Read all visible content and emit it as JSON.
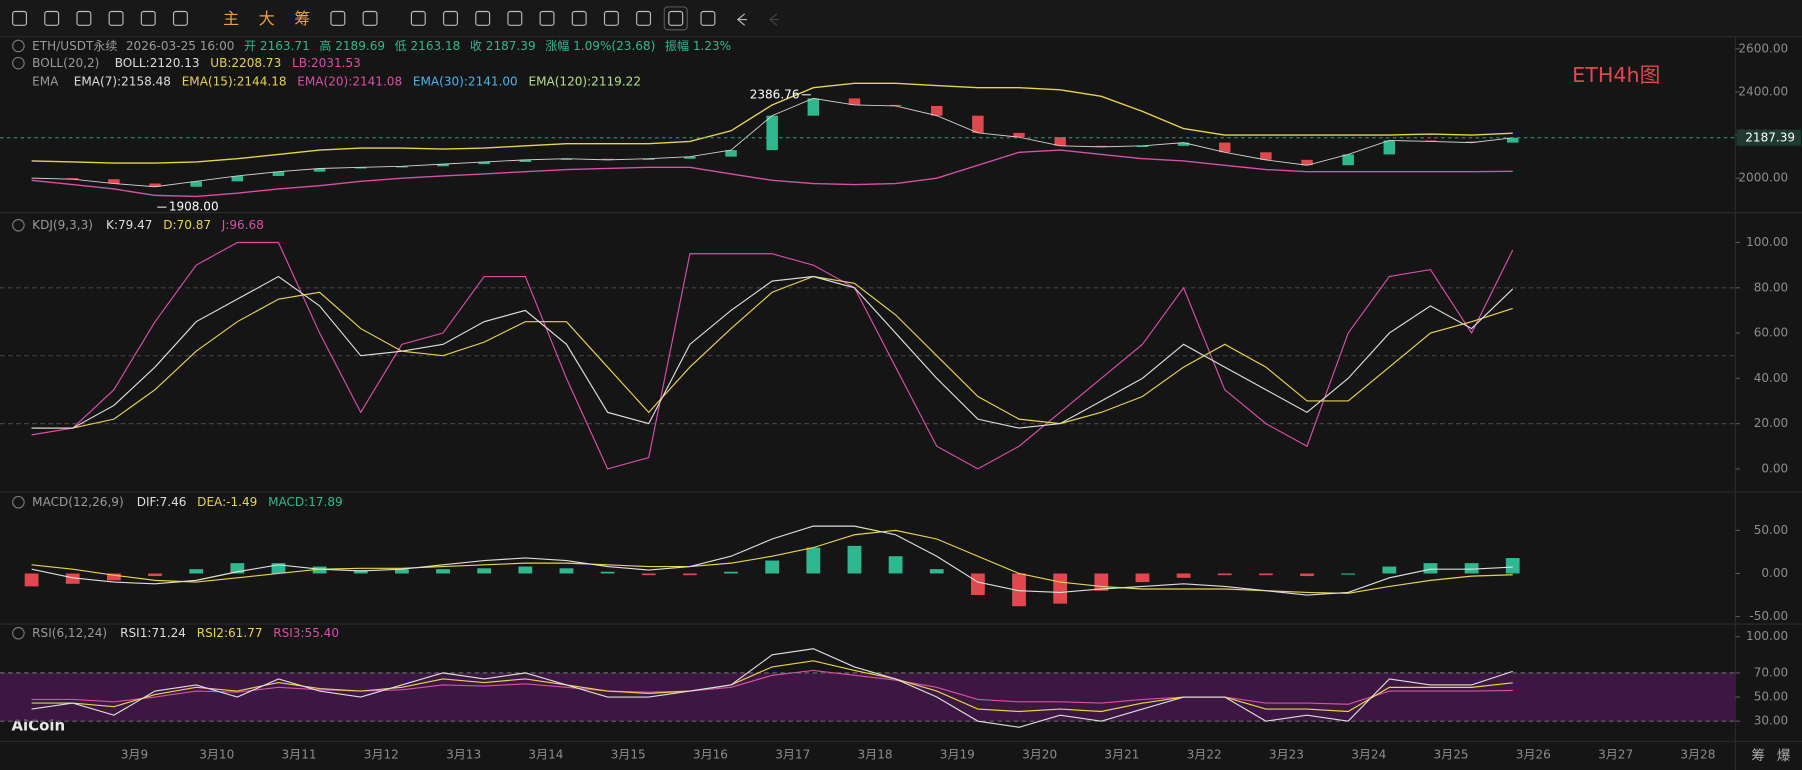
{
  "toolbar": {
    "buttons": [
      "主",
      "大",
      "筹"
    ]
  },
  "watermark": "ETH4h图",
  "logo": "AiCoin",
  "corner": [
    "筹",
    "爆"
  ],
  "x_labels": [
    "3月9",
    "3月10",
    "3月11",
    "3月12",
    "3月13",
    "3月14",
    "3月15",
    "3月16",
    "3月17",
    "3月18",
    "3月19",
    "3月20",
    "3月21",
    "3月22",
    "3月23",
    "3月24",
    "3月25",
    "3月26",
    "3月27",
    "3月28"
  ],
  "main": {
    "legend": {
      "info": [
        "ETH/USDT永续",
        "2026-03-25 16:00",
        "开 2163.71",
        "高 2189.69",
        "低 2163.18",
        "收 2187.39",
        "涨幅 1.09%(23.68)",
        "振幅 1.23%"
      ],
      "boll": [
        "BOLL(20,2)",
        "BOLL:2120.13",
        "UB:2208.73",
        "LB:2031.53"
      ],
      "ema": [
        "EMA",
        "EMA(7):2158.48",
        "EMA(15):2144.18",
        "EMA(20):2141.08",
        "EMA(30):2141.00",
        "EMA(120):2119.22"
      ]
    },
    "yticks": [
      {
        "value": 2600,
        "label": "2600.00"
      },
      {
        "value": 2400,
        "label": "2400.00"
      },
      {
        "value": 2200,
        "label": "2200.00"
      },
      {
        "value": 2000,
        "label": "2000.00"
      }
    ],
    "last_price": {
      "value": 2187.39,
      "label": "2187.39"
    },
    "high": {
      "value": 2386.76,
      "label": "2386.76"
    },
    "low": {
      "value": 1908.0,
      "label": "1908.00"
    },
    "close": [
      2000,
      1995,
      1975,
      1960,
      1985,
      2010,
      2030,
      2045,
      2050,
      2055,
      2065,
      2075,
      2085,
      2090,
      2085,
      2090,
      2100,
      2130,
      2290,
      2370,
      2340,
      2335,
      2290,
      2210,
      2190,
      2150,
      2145,
      2150,
      2165,
      2120,
      2085,
      2060,
      2110,
      2175,
      2170,
      2165,
      2187.39
    ],
    "boll_ub": [
      2080,
      2075,
      2070,
      2070,
      2075,
      2090,
      2110,
      2130,
      2140,
      2140,
      2135,
      2140,
      2150,
      2160,
      2160,
      2160,
      2170,
      2220,
      2340,
      2420,
      2440,
      2440,
      2430,
      2420,
      2420,
      2410,
      2380,
      2310,
      2230,
      2200,
      2200,
      2200,
      2200,
      2200,
      2205,
      2200,
      2208.73
    ],
    "boll_lb": [
      1990,
      1970,
      1950,
      1920,
      1915,
      1930,
      1950,
      1965,
      1985,
      2000,
      2010,
      2020,
      2030,
      2040,
      2045,
      2050,
      2050,
      2020,
      1990,
      1975,
      1970,
      1975,
      2000,
      2060,
      2120,
      2130,
      2110,
      2090,
      2080,
      2060,
      2040,
      2030,
      2030,
      2030,
      2030,
      2030,
      2031.53
    ]
  },
  "kdj": {
    "legend": [
      "KDJ(9,3,3)",
      "K:79.47",
      "D:70.87",
      "J:96.68"
    ],
    "yticks": [
      {
        "value": 100,
        "label": "100.00"
      },
      {
        "value": 80,
        "label": "80.00"
      },
      {
        "value": 60,
        "label": "60.00"
      },
      {
        "value": 40,
        "label": "40.00"
      },
      {
        "value": 20,
        "label": "20.00"
      },
      {
        "value": 0,
        "label": "0.00"
      }
    ],
    "grid": [
      80,
      50,
      20
    ],
    "k": [
      18,
      18,
      28,
      45,
      65,
      75,
      85,
      72,
      50,
      52,
      55,
      65,
      70,
      55,
      25,
      20,
      55,
      70,
      83,
      85,
      80,
      60,
      40,
      22,
      18,
      20,
      30,
      40,
      55,
      45,
      35,
      25,
      40,
      60,
      72,
      62,
      79.47
    ],
    "d": [
      18,
      18,
      22,
      35,
      52,
      65,
      75,
      78,
      62,
      52,
      50,
      56,
      65,
      65,
      45,
      25,
      45,
      62,
      78,
      85,
      82,
      68,
      50,
      32,
      22,
      20,
      25,
      32,
      45,
      55,
      45,
      30,
      30,
      45,
      60,
      65,
      70.87
    ],
    "j": [
      15,
      18,
      35,
      65,
      90,
      100,
      100,
      60,
      25,
      55,
      60,
      85,
      85,
      40,
      0,
      5,
      95,
      95,
      95,
      90,
      80,
      45,
      10,
      0,
      10,
      25,
      40,
      55,
      80,
      35,
      20,
      10,
      60,
      85,
      88,
      60,
      96.68
    ]
  },
  "macd": {
    "legend": [
      "MACD(12,26,9)",
      "DIF:7.46",
      "DEA:-1.49",
      "MACD:17.89"
    ],
    "yticks": [
      {
        "value": 50,
        "label": "50.00"
      },
      {
        "value": 0,
        "label": "0.00"
      },
      {
        "value": -50,
        "label": "-50.00"
      }
    ],
    "hist": [
      -15,
      -12,
      -8,
      -3,
      5,
      12,
      12,
      8,
      4,
      5,
      5,
      6,
      8,
      6,
      2,
      -2,
      -2,
      2,
      15,
      30,
      32,
      20,
      5,
      -25,
      -38,
      -35,
      -20,
      -10,
      -5,
      -2,
      -2,
      -3,
      0,
      8,
      12,
      12,
      17.89
    ],
    "dif": [
      5,
      -5,
      -10,
      -12,
      -8,
      2,
      10,
      5,
      3,
      5,
      10,
      15,
      18,
      15,
      8,
      4,
      8,
      20,
      40,
      55,
      55,
      45,
      20,
      -10,
      -20,
      -22,
      -18,
      -15,
      -12,
      -15,
      -20,
      -25,
      -22,
      -5,
      5,
      5,
      7.46
    ],
    "dea": [
      10,
      5,
      -2,
      -8,
      -10,
      -5,
      0,
      5,
      6,
      6,
      8,
      10,
      12,
      12,
      10,
      8,
      8,
      12,
      20,
      30,
      45,
      50,
      40,
      20,
      0,
      -10,
      -15,
      -18,
      -18,
      -18,
      -20,
      -22,
      -23,
      -15,
      -8,
      -3,
      -1.49
    ]
  },
  "rsi": {
    "legend": [
      "RSI(6,12,24)",
      "RSI1:71.24",
      "RSI2:61.77",
      "RSI3:55.40"
    ],
    "yticks": [
      {
        "value": 100,
        "label": "100.00"
      },
      {
        "value": 70,
        "label": "70.00"
      },
      {
        "value": 50,
        "label": "50.00"
      },
      {
        "value": 30,
        "label": "30.00"
      }
    ],
    "band": [
      30,
      70
    ],
    "rsi1": [
      40,
      45,
      35,
      55,
      60,
      50,
      65,
      55,
      50,
      60,
      70,
      65,
      70,
      60,
      50,
      50,
      55,
      60,
      85,
      90,
      75,
      65,
      50,
      30,
      25,
      35,
      30,
      40,
      50,
      50,
      30,
      35,
      30,
      65,
      60,
      60,
      71.24
    ],
    "rsi2": [
      45,
      45,
      42,
      52,
      58,
      55,
      62,
      57,
      55,
      58,
      65,
      62,
      65,
      60,
      55,
      53,
      55,
      60,
      75,
      80,
      72,
      65,
      55,
      40,
      38,
      40,
      38,
      45,
      50,
      50,
      40,
      40,
      38,
      58,
      58,
      58,
      61.77
    ],
    "rsi3": [
      48,
      48,
      46,
      50,
      55,
      54,
      58,
      56,
      55,
      56,
      60,
      59,
      61,
      58,
      55,
      54,
      55,
      58,
      68,
      72,
      68,
      64,
      58,
      48,
      46,
      46,
      45,
      48,
      50,
      50,
      45,
      45,
      44,
      55,
      55,
      55,
      55.4
    ]
  }
}
